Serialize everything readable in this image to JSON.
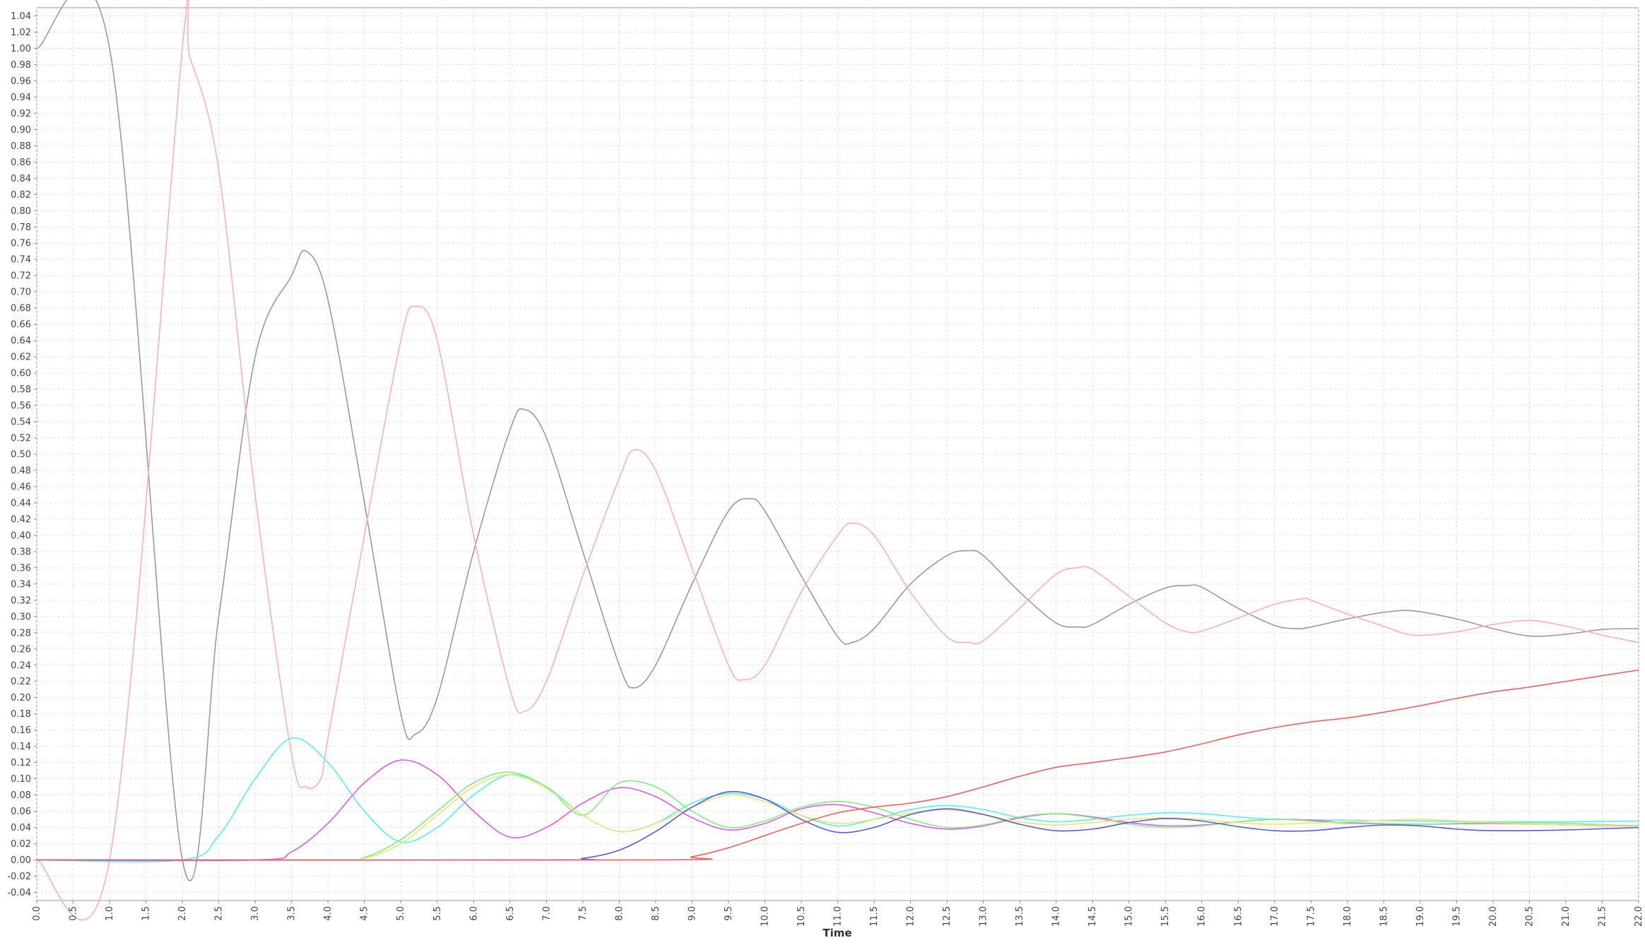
{
  "chart_data": {
    "type": "line",
    "title": "",
    "xlabel": "Time",
    "ylabel": "",
    "xlim": [
      0,
      22
    ],
    "ylim": [
      -0.05,
      1.05
    ],
    "x_tick_step": 0.5,
    "y_tick_step": 0.02,
    "grid": true,
    "legend": "none",
    "series": [
      {
        "color": "#9a9a9a",
        "points": [
          [
            0,
            1.0
          ],
          [
            1.0,
            1.0
          ],
          [
            2.0,
            0.0
          ],
          [
            2.5,
            0.3
          ],
          [
            3.0,
            0.62
          ],
          [
            3.5,
            0.72
          ],
          [
            3.7,
            0.75
          ],
          [
            4.0,
            0.69
          ],
          [
            4.5,
            0.44
          ],
          [
            5.0,
            0.18
          ],
          [
            5.2,
            0.155
          ],
          [
            5.5,
            0.2
          ],
          [
            6.0,
            0.38
          ],
          [
            6.5,
            0.53
          ],
          [
            6.7,
            0.555
          ],
          [
            7.0,
            0.52
          ],
          [
            7.5,
            0.38
          ],
          [
            8.0,
            0.24
          ],
          [
            8.2,
            0.212
          ],
          [
            8.5,
            0.24
          ],
          [
            9.0,
            0.34
          ],
          [
            9.5,
            0.43
          ],
          [
            9.8,
            0.445
          ],
          [
            10.0,
            0.43
          ],
          [
            10.5,
            0.35
          ],
          [
            11.0,
            0.275
          ],
          [
            11.2,
            0.268
          ],
          [
            11.5,
            0.285
          ],
          [
            12.0,
            0.34
          ],
          [
            12.5,
            0.375
          ],
          [
            12.8,
            0.381
          ],
          [
            13.0,
            0.375
          ],
          [
            13.5,
            0.33
          ],
          [
            14.0,
            0.292
          ],
          [
            14.3,
            0.287
          ],
          [
            14.5,
            0.29
          ],
          [
            15.0,
            0.315
          ],
          [
            15.5,
            0.335
          ],
          [
            15.8,
            0.338
          ],
          [
            16.0,
            0.336
          ],
          [
            16.5,
            0.31
          ],
          [
            17.0,
            0.289
          ],
          [
            17.3,
            0.285
          ],
          [
            17.5,
            0.287
          ],
          [
            18.0,
            0.297
          ],
          [
            18.5,
            0.305
          ],
          [
            18.9,
            0.307
          ],
          [
            19.5,
            0.297
          ],
          [
            20.0,
            0.285
          ],
          [
            20.5,
            0.276
          ],
          [
            21.0,
            0.278
          ],
          [
            21.5,
            0.284
          ],
          [
            22.0,
            0.285
          ]
        ]
      },
      {
        "color": "#ffb0b0",
        "points": [
          [
            0,
            0.0
          ],
          [
            1.0,
            0.0
          ],
          [
            2.0,
            1.0
          ],
          [
            2.1,
            0.99
          ],
          [
            2.5,
            0.85
          ],
          [
            3.0,
            0.45
          ],
          [
            3.5,
            0.13
          ],
          [
            3.7,
            0.09
          ],
          [
            3.9,
            0.1
          ],
          [
            4.0,
            0.15
          ],
          [
            4.5,
            0.4
          ],
          [
            5.0,
            0.64
          ],
          [
            5.2,
            0.682
          ],
          [
            5.5,
            0.64
          ],
          [
            6.0,
            0.4
          ],
          [
            6.5,
            0.21
          ],
          [
            6.7,
            0.183
          ],
          [
            7.0,
            0.22
          ],
          [
            7.5,
            0.35
          ],
          [
            8.0,
            0.47
          ],
          [
            8.2,
            0.505
          ],
          [
            8.5,
            0.48
          ],
          [
            9.0,
            0.36
          ],
          [
            9.5,
            0.24
          ],
          [
            9.7,
            0.222
          ],
          [
            10.0,
            0.24
          ],
          [
            10.5,
            0.33
          ],
          [
            11.0,
            0.4
          ],
          [
            11.2,
            0.415
          ],
          [
            11.5,
            0.4
          ],
          [
            12.0,
            0.33
          ],
          [
            12.5,
            0.275
          ],
          [
            12.8,
            0.268
          ],
          [
            13.0,
            0.27
          ],
          [
            13.5,
            0.31
          ],
          [
            14.0,
            0.352
          ],
          [
            14.3,
            0.36
          ],
          [
            14.5,
            0.358
          ],
          [
            15.0,
            0.325
          ],
          [
            15.5,
            0.292
          ],
          [
            15.8,
            0.281
          ],
          [
            16.0,
            0.282
          ],
          [
            16.5,
            0.298
          ],
          [
            17.0,
            0.315
          ],
          [
            17.4,
            0.322
          ],
          [
            17.5,
            0.32
          ],
          [
            18.0,
            0.303
          ],
          [
            18.5,
            0.288
          ],
          [
            18.9,
            0.277
          ],
          [
            19.5,
            0.281
          ],
          [
            20.0,
            0.29
          ],
          [
            20.5,
            0.295
          ],
          [
            21.0,
            0.288
          ],
          [
            21.5,
            0.277
          ],
          [
            22.0,
            0.268
          ]
        ]
      },
      {
        "color": "#55f0f0",
        "points": [
          [
            0,
            0.0
          ],
          [
            2.0,
            0.0
          ],
          [
            2.5,
            0.03
          ],
          [
            3.0,
            0.1
          ],
          [
            3.5,
            0.15
          ],
          [
            4.0,
            0.12
          ],
          [
            4.5,
            0.06
          ],
          [
            5.0,
            0.022
          ],
          [
            5.5,
            0.04
          ],
          [
            6.0,
            0.08
          ],
          [
            6.5,
            0.105
          ],
          [
            7.0,
            0.09
          ],
          [
            7.5,
            0.055
          ],
          [
            8.0,
            0.035
          ],
          [
            8.5,
            0.045
          ],
          [
            9.0,
            0.07
          ],
          [
            9.5,
            0.082
          ],
          [
            10.0,
            0.075
          ],
          [
            10.5,
            0.055
          ],
          [
            11.0,
            0.042
          ],
          [
            11.5,
            0.05
          ],
          [
            12.0,
            0.062
          ],
          [
            12.5,
            0.067
          ],
          [
            13.0,
            0.062
          ],
          [
            13.5,
            0.052
          ],
          [
            14.0,
            0.047
          ],
          [
            14.5,
            0.05
          ],
          [
            15.0,
            0.055
          ],
          [
            15.5,
            0.058
          ],
          [
            16.0,
            0.057
          ],
          [
            16.5,
            0.053
          ],
          [
            17.0,
            0.05
          ],
          [
            18.0,
            0.049
          ],
          [
            19.0,
            0.048
          ],
          [
            20.0,
            0.047
          ],
          [
            21.0,
            0.047
          ],
          [
            22.0,
            0.048
          ]
        ]
      },
      {
        "color": "#e855e8",
        "points": [
          [
            0,
            0.0
          ],
          [
            3.0,
            0.0
          ],
          [
            3.5,
            0.01
          ],
          [
            4.0,
            0.045
          ],
          [
            4.5,
            0.095
          ],
          [
            5.0,
            0.123
          ],
          [
            5.5,
            0.105
          ],
          [
            6.0,
            0.06
          ],
          [
            6.5,
            0.028
          ],
          [
            7.0,
            0.04
          ],
          [
            7.5,
            0.07
          ],
          [
            8.0,
            0.089
          ],
          [
            8.5,
            0.078
          ],
          [
            9.0,
            0.052
          ],
          [
            9.5,
            0.037
          ],
          [
            10.0,
            0.045
          ],
          [
            10.5,
            0.063
          ],
          [
            11.0,
            0.068
          ],
          [
            11.5,
            0.058
          ],
          [
            12.0,
            0.045
          ],
          [
            12.5,
            0.038
          ],
          [
            13.0,
            0.042
          ],
          [
            13.5,
            0.052
          ],
          [
            14.0,
            0.057
          ],
          [
            14.5,
            0.053
          ],
          [
            15.0,
            0.046
          ],
          [
            15.5,
            0.042
          ],
          [
            16.0,
            0.043
          ],
          [
            16.5,
            0.047
          ],
          [
            17.0,
            0.05
          ],
          [
            17.5,
            0.049
          ],
          [
            18.0,
            0.046
          ],
          [
            19.0,
            0.044
          ],
          [
            20.0,
            0.045
          ],
          [
            21.0,
            0.043
          ],
          [
            22.0,
            0.042
          ]
        ]
      },
      {
        "color": "#80ee80",
        "points": [
          [
            0,
            0.0
          ],
          [
            4.0,
            0.0
          ],
          [
            4.5,
            0.003
          ],
          [
            5.0,
            0.025
          ],
          [
            5.5,
            0.06
          ],
          [
            6.0,
            0.095
          ],
          [
            6.5,
            0.108
          ],
          [
            7.0,
            0.09
          ],
          [
            7.5,
            0.055
          ],
          [
            8.0,
            0.095
          ],
          [
            8.5,
            0.09
          ],
          [
            9.0,
            0.06
          ],
          [
            9.5,
            0.04
          ],
          [
            10.0,
            0.048
          ],
          [
            10.5,
            0.065
          ],
          [
            11.0,
            0.072
          ],
          [
            11.5,
            0.065
          ],
          [
            12.0,
            0.05
          ],
          [
            12.5,
            0.04
          ],
          [
            13.0,
            0.043
          ],
          [
            13.5,
            0.053
          ],
          [
            14.0,
            0.057
          ],
          [
            14.5,
            0.052
          ],
          [
            15.0,
            0.044
          ],
          [
            15.5,
            0.04
          ],
          [
            16.0,
            0.042
          ],
          [
            16.5,
            0.047
          ],
          [
            17.0,
            0.05
          ],
          [
            17.5,
            0.048
          ],
          [
            18.0,
            0.045
          ],
          [
            19.0,
            0.044
          ],
          [
            20.0,
            0.046
          ],
          [
            21.0,
            0.045
          ],
          [
            22.0,
            0.042
          ]
        ]
      },
      {
        "color": "#e8e870",
        "points": [
          [
            0,
            0.0
          ],
          [
            4.0,
            0.0
          ],
          [
            4.5,
            0.002
          ],
          [
            5.0,
            0.02
          ],
          [
            5.5,
            0.055
          ],
          [
            6.0,
            0.09
          ],
          [
            6.5,
            0.105
          ],
          [
            7.0,
            0.088
          ],
          [
            7.5,
            0.055
          ],
          [
            8.0,
            0.035
          ],
          [
            8.5,
            0.045
          ],
          [
            9.0,
            0.065
          ],
          [
            9.5,
            0.08
          ],
          [
            10.0,
            0.072
          ],
          [
            10.5,
            0.055
          ],
          [
            11.0,
            0.045
          ],
          [
            11.5,
            0.05
          ],
          [
            12.0,
            0.058
          ],
          [
            12.5,
            0.062
          ],
          [
            13.0,
            0.056
          ],
          [
            13.5,
            0.047
          ],
          [
            14.0,
            0.043
          ],
          [
            14.5,
            0.046
          ],
          [
            15.0,
            0.05
          ],
          [
            15.5,
            0.052
          ],
          [
            16.0,
            0.05
          ],
          [
            16.5,
            0.046
          ],
          [
            17.0,
            0.044
          ],
          [
            18.0,
            0.047
          ],
          [
            19.0,
            0.05
          ],
          [
            20.0,
            0.046
          ],
          [
            21.0,
            0.043
          ],
          [
            22.0,
            0.043
          ]
        ]
      },
      {
        "color": "#5a5ae0",
        "points": [
          [
            0,
            0.0
          ],
          [
            7.0,
            0.0
          ],
          [
            7.5,
            0.002
          ],
          [
            8.0,
            0.012
          ],
          [
            8.5,
            0.035
          ],
          [
            9.0,
            0.065
          ],
          [
            9.5,
            0.084
          ],
          [
            10.0,
            0.075
          ],
          [
            10.5,
            0.05
          ],
          [
            11.0,
            0.034
          ],
          [
            11.5,
            0.04
          ],
          [
            12.0,
            0.056
          ],
          [
            12.5,
            0.063
          ],
          [
            13.0,
            0.056
          ],
          [
            13.5,
            0.044
          ],
          [
            14.0,
            0.036
          ],
          [
            14.5,
            0.038
          ],
          [
            15.0,
            0.046
          ],
          [
            15.5,
            0.051
          ],
          [
            16.0,
            0.048
          ],
          [
            16.5,
            0.041
          ],
          [
            17.0,
            0.036
          ],
          [
            17.5,
            0.036
          ],
          [
            18.0,
            0.04
          ],
          [
            18.5,
            0.043
          ],
          [
            19.0,
            0.042
          ],
          [
            19.5,
            0.038
          ],
          [
            20.0,
            0.036
          ],
          [
            21.0,
            0.037
          ],
          [
            22.0,
            0.04
          ]
        ]
      },
      {
        "color": "#f06060",
        "points": [
          [
            0,
            0.0
          ],
          [
            8.5,
            0.0
          ],
          [
            9.0,
            0.004
          ],
          [
            9.5,
            0.015
          ],
          [
            10.0,
            0.03
          ],
          [
            10.5,
            0.045
          ],
          [
            11.0,
            0.058
          ],
          [
            11.5,
            0.065
          ],
          [
            12.0,
            0.07
          ],
          [
            12.5,
            0.078
          ],
          [
            13.0,
            0.09
          ],
          [
            13.5,
            0.103
          ],
          [
            14.0,
            0.114
          ],
          [
            14.5,
            0.12
          ],
          [
            15.0,
            0.126
          ],
          [
            15.5,
            0.133
          ],
          [
            16.0,
            0.143
          ],
          [
            16.5,
            0.154
          ],
          [
            17.0,
            0.163
          ],
          [
            17.5,
            0.17
          ],
          [
            18.0,
            0.175
          ],
          [
            18.5,
            0.182
          ],
          [
            19.0,
            0.19
          ],
          [
            19.5,
            0.199
          ],
          [
            20.0,
            0.207
          ],
          [
            20.5,
            0.213
          ],
          [
            21.0,
            0.22
          ],
          [
            21.5,
            0.227
          ],
          [
            22.0,
            0.234
          ]
        ]
      }
    ]
  }
}
